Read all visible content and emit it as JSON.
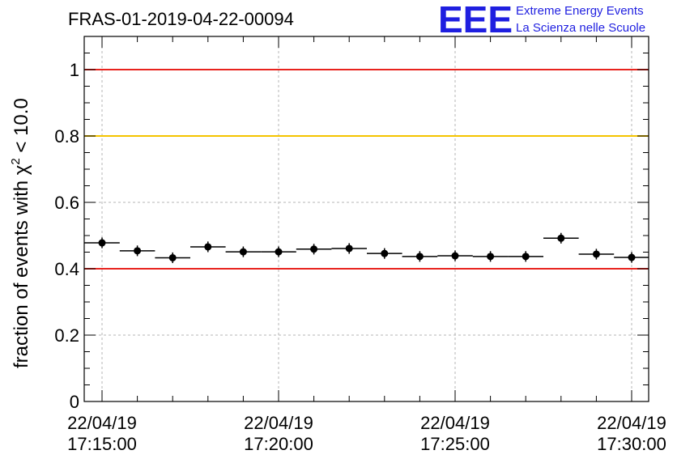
{
  "chart_data": {
    "type": "scatter",
    "title": "FRAS-01-2019-04-22-00094",
    "ylabel": "fraction of events with χ² < 10.0",
    "ylabel_parts": {
      "pre": "fraction of events with ",
      "chi": "χ",
      "sup": "2",
      "post": " < 10.0"
    },
    "xlabel": "",
    "x_time_start": "22/04/19 17:14:00",
    "x_time_end": "22/04/19 17:31:00",
    "ylim": [
      0,
      1.1
    ],
    "yticks": [
      "0",
      "0.2",
      "0.4",
      "0.6",
      "0.8",
      "1"
    ],
    "xtick_labels": [
      {
        "date": "22/04/19",
        "time": "17:15:00"
      },
      {
        "date": "22/04/19",
        "time": "17:20:00"
      },
      {
        "date": "22/04/19",
        "time": "17:25:00"
      },
      {
        "date": "22/04/19",
        "time": "17:30:00"
      }
    ],
    "grid": true,
    "reference_lines": [
      {
        "y": 1.0,
        "color": "#e8231e"
      },
      {
        "y": 0.8,
        "color": "#f5c400"
      },
      {
        "y": 0.4,
        "color": "#e8231e"
      }
    ],
    "series": [
      {
        "marker_color": "#000000",
        "points": [
          {
            "x": "17:15:00",
            "y": 0.478,
            "xerr_s": 30,
            "yerr": 0.016
          },
          {
            "x": "17:16:00",
            "y": 0.454,
            "xerr_s": 30,
            "yerr": 0.016
          },
          {
            "x": "17:17:00",
            "y": 0.433,
            "xerr_s": 30,
            "yerr": 0.016
          },
          {
            "x": "17:18:00",
            "y": 0.466,
            "xerr_s": 30,
            "yerr": 0.016
          },
          {
            "x": "17:19:00",
            "y": 0.451,
            "xerr_s": 30,
            "yerr": 0.016
          },
          {
            "x": "17:20:00",
            "y": 0.451,
            "xerr_s": 30,
            "yerr": 0.016
          },
          {
            "x": "17:21:00",
            "y": 0.459,
            "xerr_s": 30,
            "yerr": 0.016
          },
          {
            "x": "17:22:00",
            "y": 0.461,
            "xerr_s": 30,
            "yerr": 0.016
          },
          {
            "x": "17:23:00",
            "y": 0.446,
            "xerr_s": 30,
            "yerr": 0.016
          },
          {
            "x": "17:24:00",
            "y": 0.437,
            "xerr_s": 30,
            "yerr": 0.016
          },
          {
            "x": "17:25:00",
            "y": 0.439,
            "xerr_s": 30,
            "yerr": 0.016
          },
          {
            "x": "17:26:00",
            "y": 0.437,
            "xerr_s": 30,
            "yerr": 0.016
          },
          {
            "x": "17:27:00",
            "y": 0.437,
            "xerr_s": 30,
            "yerr": 0.016
          },
          {
            "x": "17:28:00",
            "y": 0.492,
            "xerr_s": 30,
            "yerr": 0.016
          },
          {
            "x": "17:29:00",
            "y": 0.444,
            "xerr_s": 30,
            "yerr": 0.016
          },
          {
            "x": "17:30:00",
            "y": 0.434,
            "xerr_s": 30,
            "yerr": 0.016
          }
        ]
      }
    ]
  },
  "logo": {
    "big": "EEE",
    "line1": "Extreme Energy Events",
    "line2": "La Scienza nelle Scuole"
  }
}
